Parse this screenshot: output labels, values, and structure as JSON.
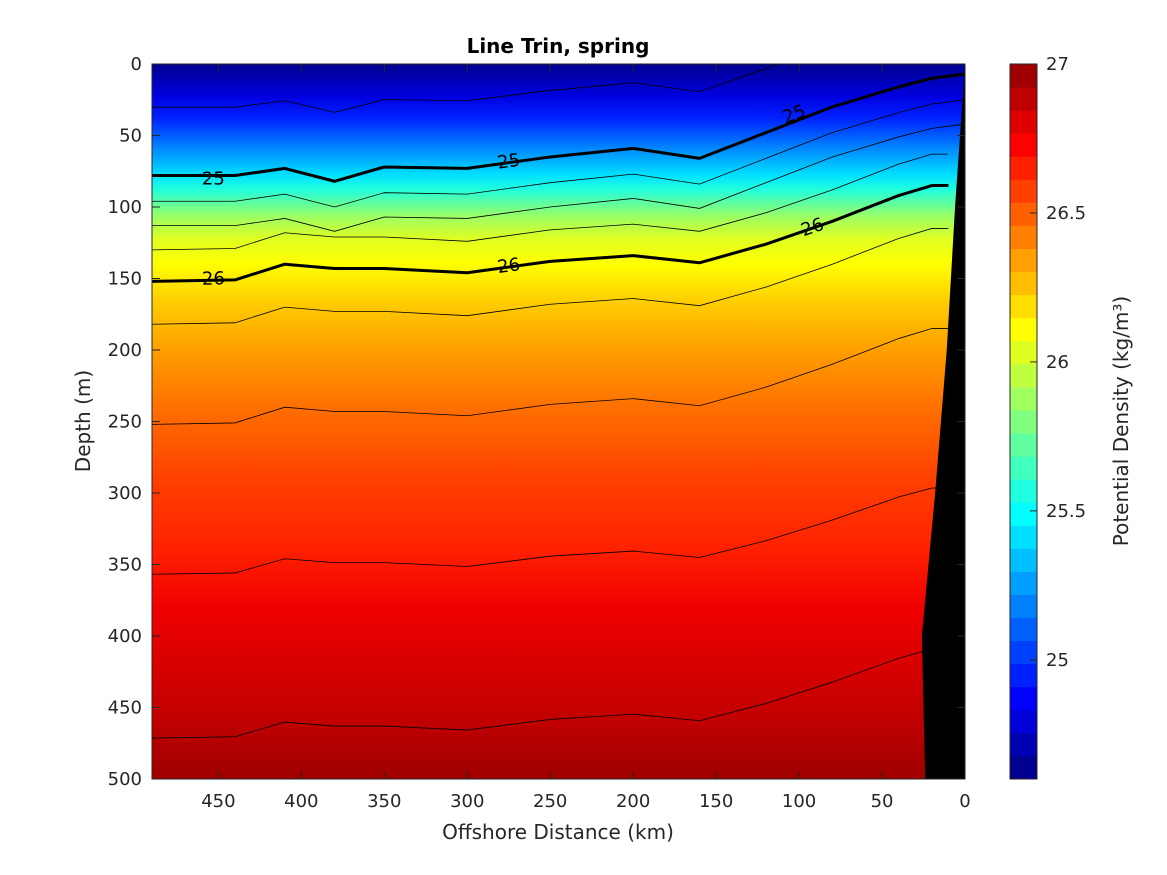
{
  "chart_data": {
    "type": "contour",
    "title": "Line Trin, spring",
    "xlabel": "Offshore Distance (km)",
    "ylabel": "Depth (m)",
    "colorbar_label": "Potential Density (kg/m³)",
    "x_reversed": true,
    "xlim": [
      490,
      0
    ],
    "ylim": [
      0,
      500
    ],
    "y_reversed": true,
    "x_ticks": [
      450,
      400,
      350,
      300,
      250,
      200,
      150,
      100,
      50,
      0
    ],
    "y_ticks": [
      0,
      50,
      100,
      150,
      200,
      250,
      300,
      350,
      400,
      450,
      500
    ],
    "colorbar": {
      "range": [
        24.6,
        27.0
      ],
      "levels": 24,
      "ticks": [
        25,
        25.5,
        26,
        26.5,
        27
      ],
      "colors": [
        "#00008f",
        "#0000b3",
        "#0000d9",
        "#0000ff",
        "#0020ff",
        "#0040ff",
        "#0060ff",
        "#0080ff",
        "#009fff",
        "#00bfff",
        "#00dfff",
        "#00ffff",
        "#20ffdf",
        "#40ffbf",
        "#60ff9f",
        "#80ff80",
        "#9fff60",
        "#bfff40",
        "#dfff20",
        "#ffff00",
        "#ffdf00",
        "#ffbf00",
        "#ff9f00",
        "#ff8000",
        "#ff6000",
        "#ff4000",
        "#ff2000",
        "#ff0000",
        "#df0000",
        "#bf0000",
        "#9f0000"
      ]
    },
    "isopycnals": [
      {
        "density": 25.0,
        "bold": true,
        "x": [
          490,
          440,
          410,
          380,
          350,
          300,
          250,
          200,
          160,
          120,
          80,
          40,
          20,
          0
        ],
        "depth": [
          78,
          78,
          73,
          82,
          72,
          73,
          65,
          59,
          66,
          48,
          30,
          16,
          10,
          7
        ]
      },
      {
        "density": 26.0,
        "bold": true,
        "x": [
          490,
          440,
          410,
          380,
          350,
          300,
          250,
          200,
          160,
          120,
          80,
          40,
          20,
          10
        ],
        "depth": [
          152,
          151,
          140,
          143,
          143,
          146,
          138,
          134,
          139,
          126,
          110,
          92,
          85,
          85
        ]
      }
    ],
    "contour_labels": [
      {
        "text": "25",
        "x": 453,
        "depth": 80
      },
      {
        "text": "26",
        "x": 453,
        "depth": 150
      },
      {
        "text": "25",
        "x": 275,
        "depth": 68
      },
      {
        "text": "26",
        "x": 275,
        "depth": 141
      },
      {
        "text": "25",
        "x": 103,
        "depth": 35
      },
      {
        "text": "26",
        "x": 92,
        "depth": 114
      }
    ],
    "bottom_topography": {
      "x": [
        0,
        6,
        11,
        18,
        26,
        24,
        20,
        10,
        0
      ],
      "depth": [
        0,
        100,
        200,
        300,
        400,
        500,
        500,
        500,
        500
      ],
      "color": "#000000"
    }
  }
}
